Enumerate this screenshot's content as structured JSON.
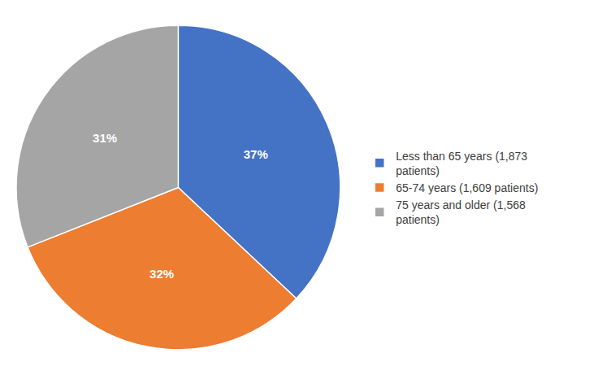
{
  "chart_data": {
    "type": "pie",
    "categories": [
      "Less than 65 years (1,873\npatients)",
      "65-74 years (1,609 patients)",
      "75 years and older (1,568\npatients)"
    ],
    "values": [
      37,
      32,
      31
    ],
    "value_labels": [
      "37%",
      "32%",
      "31%"
    ],
    "colors": [
      "#4472C4",
      "#ED7D31",
      "#A5A5A5"
    ],
    "data_labels": true,
    "legend": "right"
  }
}
